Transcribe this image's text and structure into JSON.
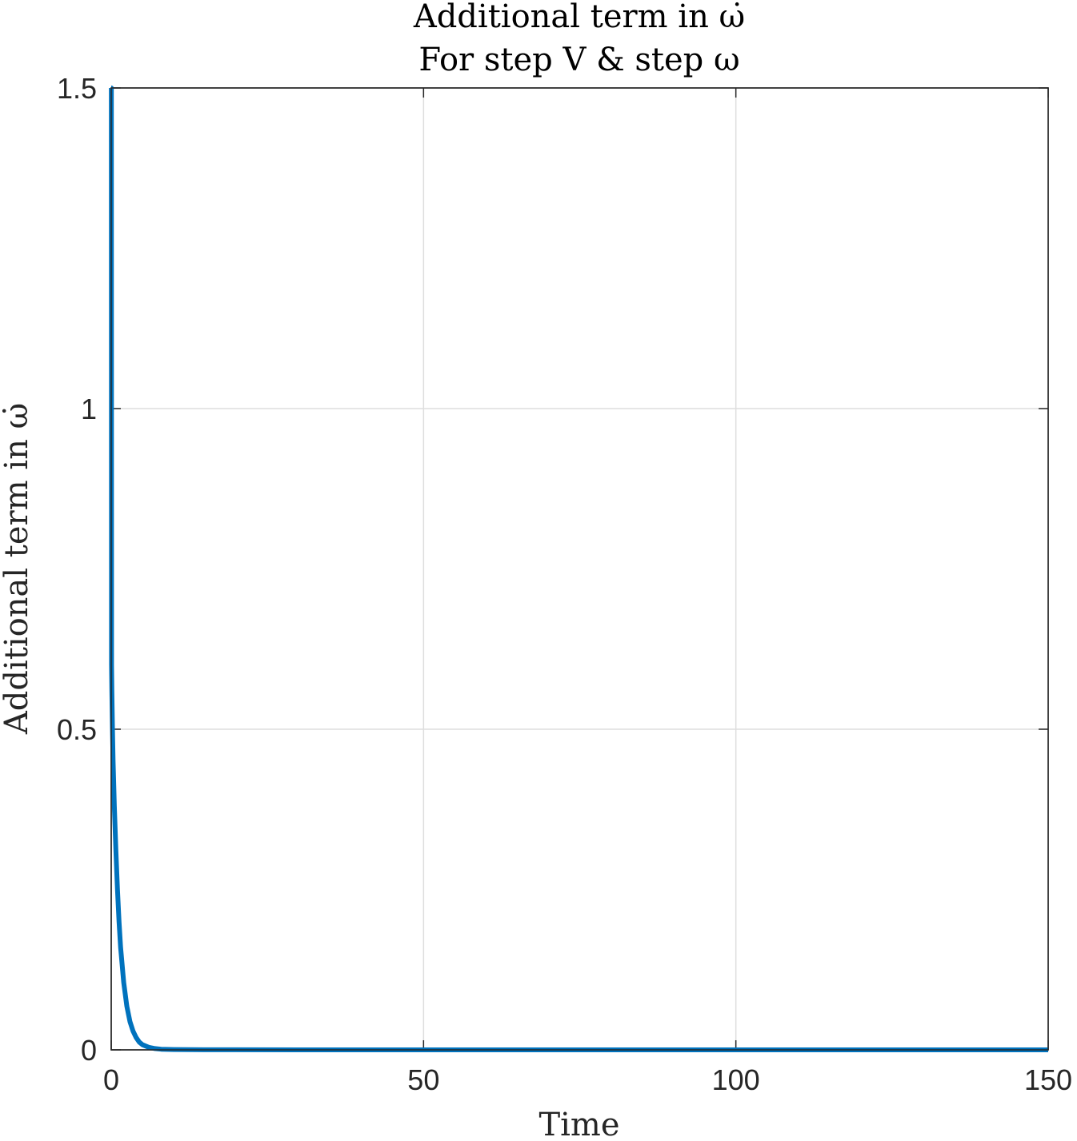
{
  "chart_data": {
    "type": "line",
    "title": "Additional term in ω̇",
    "subtitle": "For step V & step ω",
    "xlabel": "Time",
    "ylabel": "Additional term in ω̇",
    "xlim": [
      0,
      150
    ],
    "ylim": [
      0,
      1.5
    ],
    "xticks": [
      "0",
      "50",
      "100",
      "150"
    ],
    "yticks": [
      "0",
      "0.5",
      "1",
      "1.5"
    ],
    "grid": true,
    "legend": null,
    "series": [
      {
        "color": "#0072BD",
        "x": [
          0,
          0.02,
          0.05,
          0.1,
          0.2,
          0.3,
          0.5,
          0.75,
          1,
          1.25,
          1.5,
          2,
          2.5,
          3,
          3.5,
          4,
          4.5,
          5,
          6,
          7,
          8,
          10,
          15,
          20,
          30,
          50,
          75,
          100,
          125,
          150
        ],
        "y": [
          1.5,
          1.5,
          0.6,
          0.56,
          0.5,
          0.45,
          0.38,
          0.31,
          0.25,
          0.2,
          0.16,
          0.105,
          0.068,
          0.044,
          0.029,
          0.019,
          0.012,
          0.008,
          0.004,
          0.002,
          0.001,
          0.0005,
          0.0002,
          0.0001,
          0,
          0,
          0,
          0,
          0,
          0
        ]
      }
    ]
  }
}
